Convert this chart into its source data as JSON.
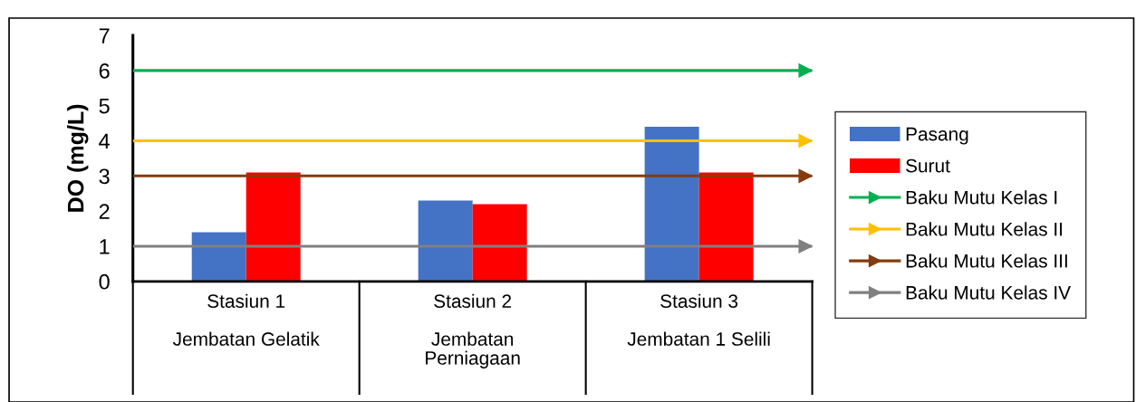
{
  "chart_data": {
    "type": "bar",
    "ylabel": "DO (mg/L)",
    "categories": [
      "Stasiun 1\n\nJembatan Gelatik",
      "Stasiun 2\n\nJembatan\nPerniagaan",
      "Stasiun 3\n\nJembatan 1 Selili"
    ],
    "series": [
      {
        "name": "Pasang",
        "color": "#4472c4",
        "values": [
          1.4,
          2.3,
          4.4
        ]
      },
      {
        "name": "Surut",
        "color": "#ff0000",
        "values": [
          3.1,
          2.2,
          3.1
        ]
      }
    ],
    "ref_lines": [
      {
        "axis": "y",
        "value": 6,
        "label": "Baku Mutu Kelas I",
        "color": "#00b050"
      },
      {
        "axis": "y",
        "value": 4,
        "label": "Baku Mutu Kelas II",
        "color": "#ffc000"
      },
      {
        "axis": "y",
        "value": 3,
        "label": "Baku Mutu Kelas III",
        "color": "#843c0c"
      },
      {
        "axis": "y",
        "value": 1,
        "label": "Baku Mutu Kelas IV",
        "color": "#808080"
      }
    ],
    "ylim": [
      0,
      7
    ],
    "yticks": [
      0,
      1,
      2,
      3,
      4,
      5,
      6,
      7
    ],
    "grid": false,
    "legend": "right"
  }
}
